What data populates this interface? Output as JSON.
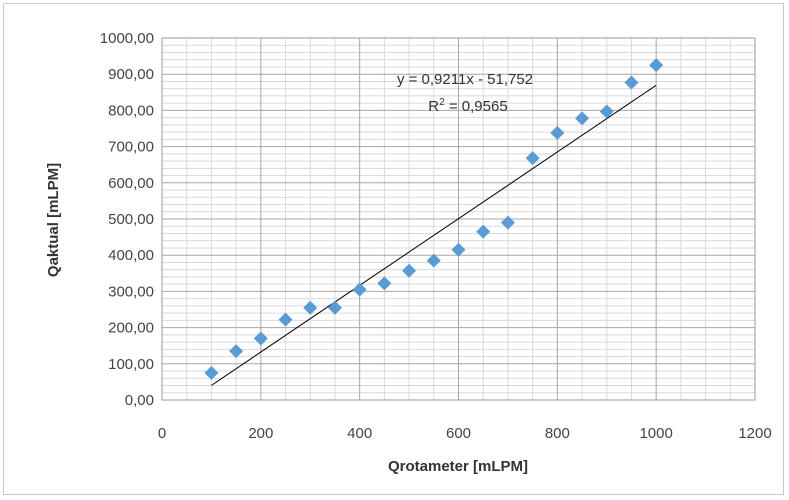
{
  "chart_data": {
    "type": "scatter",
    "title": "",
    "xlabel": "Qrotameter [mLPM]",
    "ylabel": "Qaktual [mLPM]",
    "xlim": [
      0,
      1200
    ],
    "ylim": [
      0,
      1000
    ],
    "x_ticks": [
      0,
      200,
      400,
      600,
      800,
      1000,
      1200
    ],
    "x_tick_labels": [
      "0",
      "200",
      "400",
      "600",
      "800",
      "1000",
      "1200"
    ],
    "y_ticks": [
      0,
      100,
      200,
      300,
      400,
      500,
      600,
      700,
      800,
      900,
      1000
    ],
    "y_tick_labels": [
      "0,00",
      "100,00",
      "200,00",
      "300,00",
      "400,00",
      "500,00",
      "600,00",
      "700,00",
      "800,00",
      "900,00",
      "1000,00"
    ],
    "grid": true,
    "marker_color": "#5b9bd5",
    "series": [
      {
        "x": [
          100,
          150,
          200,
          250,
          300,
          350,
          400,
          450,
          500,
          550,
          600,
          650,
          700,
          750,
          800,
          850,
          900,
          950,
          1000
        ],
        "y": [
          75,
          135,
          170,
          222,
          255,
          255,
          305,
          322,
          357,
          385,
          415,
          465,
          490,
          668,
          738,
          778,
          797,
          877,
          925
        ]
      }
    ],
    "trendline": {
      "slope": 0.9211,
      "intercept": -51.752,
      "x_range": [
        100,
        1000
      ],
      "color": "#000000"
    },
    "annotations": {
      "equation": "y = 0,9211x - 51,752",
      "r_squared_prefix": "R",
      "r_squared_suffix": " = 0,9565"
    }
  }
}
